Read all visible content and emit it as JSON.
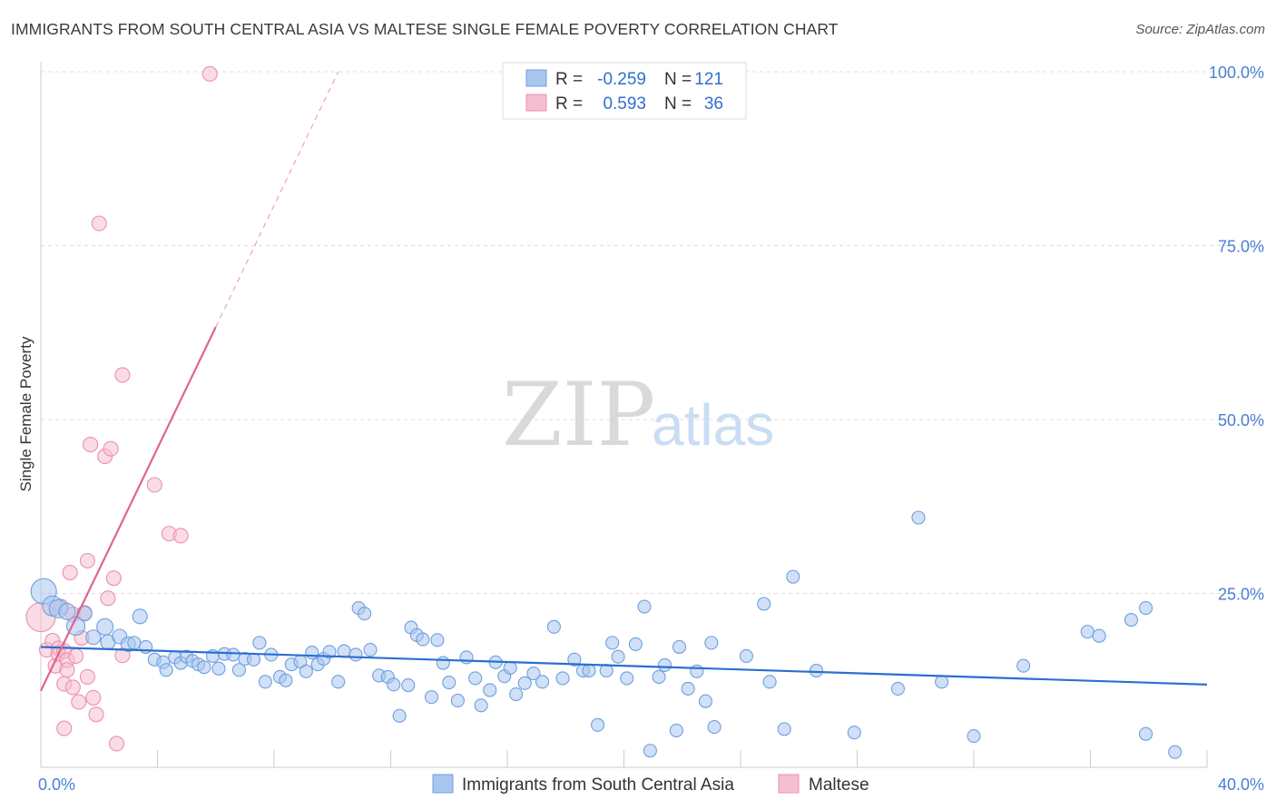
{
  "title": "IMMIGRANTS FROM SOUTH CENTRAL ASIA VS MALTESE SINGLE FEMALE POVERTY CORRELATION CHART",
  "source": "Source: ZipAtlas.com",
  "watermark": {
    "zip": "ZIP",
    "atlas": "atlas"
  },
  "colors": {
    "blue_fill": "#a9c6ef",
    "blue_stroke": "#6f9fe0",
    "blue_line": "#2b6fd0",
    "pink_fill": "#f6bfd0",
    "pink_stroke": "#ec8fae",
    "pink_line": "#e0648e",
    "tick_text": "#4a7fd4",
    "grid": "#dddddd"
  },
  "legend": {
    "r_label": "R =",
    "n_label": "N =",
    "rows": [
      {
        "series": "blue",
        "r": "-0.259",
        "n": "121"
      },
      {
        "series": "pink",
        "r": "0.593",
        "n": "36"
      }
    ]
  },
  "chart_data": {
    "type": "scatter",
    "title": "IMMIGRANTS FROM SOUTH CENTRAL ASIA VS MALTESE SINGLE FEMALE POVERTY CORRELATION CHART",
    "xlabel": "",
    "ylabel": "Single Female Poverty",
    "xlim": [
      0,
      40
    ],
    "ylim": [
      0,
      105
    ],
    "x_ticks": [
      "0.0%",
      "40.0%"
    ],
    "y_ticks": [
      {
        "value": 25,
        "label": "25.0%"
      },
      {
        "value": 50,
        "label": "50.0%"
      },
      {
        "value": 75,
        "label": "75.0%"
      },
      {
        "value": 100,
        "label": "100.0%"
      }
    ],
    "grid": true,
    "legend_position": "bottom",
    "series": [
      {
        "name": "Immigrants from South Central Asia",
        "color": "blue",
        "trend": {
          "x": [
            0,
            40
          ],
          "y": [
            17.3,
            11.9
          ]
        },
        "points": [
          [
            0.1,
            25.3,
            14
          ],
          [
            0.4,
            23.2,
            11
          ],
          [
            0.6,
            22.8,
            10
          ],
          [
            0.9,
            22.4,
            9
          ],
          [
            1.2,
            20.3,
            10
          ],
          [
            1.5,
            22.1,
            8
          ],
          [
            1.8,
            18.7,
            8
          ],
          [
            2.2,
            20.2,
            9
          ],
          [
            2.3,
            18.0,
            8
          ],
          [
            2.7,
            18.8,
            8
          ],
          [
            3.0,
            17.7,
            8
          ],
          [
            3.2,
            17.9,
            7
          ],
          [
            3.4,
            21.7,
            8
          ],
          [
            3.6,
            17.3,
            7
          ],
          [
            3.9,
            15.5,
            7
          ],
          [
            4.2,
            15.1,
            7
          ],
          [
            4.3,
            14.0,
            7
          ],
          [
            4.6,
            15.8,
            7
          ],
          [
            4.8,
            15.0,
            7
          ],
          [
            5.0,
            15.9,
            7
          ],
          [
            5.2,
            15.3,
            7
          ],
          [
            5.4,
            14.8,
            7
          ],
          [
            5.6,
            14.4,
            7
          ],
          [
            5.9,
            16.0,
            7
          ],
          [
            6.1,
            14.2,
            7
          ],
          [
            6.3,
            16.3,
            7
          ],
          [
            6.6,
            16.2,
            7
          ],
          [
            6.8,
            14.0,
            7
          ],
          [
            7.0,
            15.6,
            7
          ],
          [
            7.3,
            15.5,
            7
          ],
          [
            7.5,
            17.9,
            7
          ],
          [
            7.7,
            12.3,
            7
          ],
          [
            7.9,
            16.2,
            7
          ],
          [
            8.2,
            13.0,
            7
          ],
          [
            8.4,
            12.5,
            7
          ],
          [
            8.6,
            14.8,
            7
          ],
          [
            8.9,
            15.2,
            7
          ],
          [
            9.1,
            13.8,
            7
          ],
          [
            9.3,
            16.5,
            7
          ],
          [
            9.5,
            14.8,
            7
          ],
          [
            9.7,
            15.6,
            7
          ],
          [
            9.9,
            16.6,
            7
          ],
          [
            10.2,
            12.3,
            7
          ],
          [
            10.4,
            16.7,
            7
          ],
          [
            10.8,
            16.2,
            7
          ],
          [
            10.9,
            22.9,
            7
          ],
          [
            11.1,
            22.1,
            7
          ],
          [
            11.3,
            16.9,
            7
          ],
          [
            11.6,
            13.2,
            7
          ],
          [
            11.9,
            13.0,
            7
          ],
          [
            12.1,
            11.9,
            7
          ],
          [
            12.3,
            7.4,
            7
          ],
          [
            12.6,
            11.8,
            7
          ],
          [
            12.7,
            20.1,
            7
          ],
          [
            12.9,
            19.0,
            7
          ],
          [
            13.1,
            18.4,
            7
          ],
          [
            13.4,
            10.1,
            7
          ],
          [
            13.6,
            18.3,
            7
          ],
          [
            13.8,
            15.0,
            7
          ],
          [
            14.0,
            12.2,
            7
          ],
          [
            14.3,
            9.6,
            7
          ],
          [
            14.6,
            15.8,
            7
          ],
          [
            14.9,
            12.8,
            7
          ],
          [
            15.1,
            8.9,
            7
          ],
          [
            15.4,
            11.1,
            7
          ],
          [
            15.6,
            15.1,
            7
          ],
          [
            15.9,
            13.1,
            7
          ],
          [
            16.1,
            14.3,
            7
          ],
          [
            16.3,
            10.5,
            7
          ],
          [
            16.6,
            12.1,
            7
          ],
          [
            16.9,
            13.5,
            7
          ],
          [
            17.2,
            12.3,
            7
          ],
          [
            17.6,
            20.2,
            7
          ],
          [
            17.9,
            12.8,
            7
          ],
          [
            18.3,
            15.5,
            7
          ],
          [
            18.6,
            13.9,
            7
          ],
          [
            18.8,
            13.9,
            7
          ],
          [
            19.1,
            6.1,
            7
          ],
          [
            19.4,
            13.9,
            7
          ],
          [
            19.6,
            17.9,
            7
          ],
          [
            19.8,
            15.9,
            7
          ],
          [
            20.1,
            12.8,
            7
          ],
          [
            20.4,
            17.7,
            7
          ],
          [
            20.7,
            23.1,
            7
          ],
          [
            20.9,
            2.4,
            7
          ],
          [
            21.2,
            13.0,
            7
          ],
          [
            21.4,
            14.7,
            7
          ],
          [
            21.8,
            5.3,
            7
          ],
          [
            21.9,
            17.3,
            7
          ],
          [
            22.2,
            11.3,
            7
          ],
          [
            22.5,
            13.8,
            7
          ],
          [
            22.8,
            9.5,
            7
          ],
          [
            23.0,
            17.9,
            7
          ],
          [
            23.1,
            5.8,
            7
          ],
          [
            24.2,
            16.0,
            7
          ],
          [
            24.8,
            23.5,
            7
          ],
          [
            25.0,
            12.3,
            7
          ],
          [
            25.5,
            5.5,
            7
          ],
          [
            25.8,
            27.4,
            7
          ],
          [
            26.6,
            13.9,
            7
          ],
          [
            27.9,
            5.0,
            7
          ],
          [
            29.4,
            11.3,
            7
          ],
          [
            30.1,
            35.9,
            7
          ],
          [
            30.9,
            12.3,
            7
          ],
          [
            32.0,
            4.5,
            7
          ],
          [
            33.7,
            14.6,
            7
          ],
          [
            35.9,
            19.5,
            7
          ],
          [
            36.3,
            18.9,
            7
          ],
          [
            37.4,
            21.2,
            7
          ],
          [
            37.9,
            22.9,
            7
          ],
          [
            37.9,
            4.8,
            7
          ],
          [
            38.9,
            2.2,
            7
          ]
        ]
      },
      {
        "name": "Maltese",
        "color": "pink",
        "trend": {
          "x": [
            0,
            6.0
          ],
          "y": [
            11.0,
            63.3
          ]
        },
        "trend_dashed": {
          "x": [
            6.0,
            10.2
          ],
          "y": [
            63.3,
            100
          ]
        },
        "points": [
          [
            0.0,
            21.6,
            16
          ],
          [
            0.2,
            16.9,
            8
          ],
          [
            0.4,
            18.2,
            8
          ],
          [
            0.5,
            14.6,
            8
          ],
          [
            0.6,
            17.1,
            8
          ],
          [
            0.6,
            16.3,
            8
          ],
          [
            0.7,
            23.1,
            8
          ],
          [
            0.8,
            16.7,
            8
          ],
          [
            0.8,
            12.0,
            8
          ],
          [
            0.9,
            15.4,
            8
          ],
          [
            0.8,
            5.6,
            8
          ],
          [
            0.9,
            14.0,
            8
          ],
          [
            1.0,
            28.0,
            8
          ],
          [
            1.1,
            22.0,
            8
          ],
          [
            1.1,
            11.5,
            8
          ],
          [
            1.2,
            16.0,
            8
          ],
          [
            1.3,
            9.4,
            8
          ],
          [
            1.4,
            18.6,
            8
          ],
          [
            1.5,
            22.2,
            8
          ],
          [
            1.6,
            13.0,
            8
          ],
          [
            1.6,
            29.7,
            8
          ],
          [
            1.7,
            46.4,
            8
          ],
          [
            1.8,
            10.0,
            8
          ],
          [
            1.9,
            7.6,
            8
          ],
          [
            2.0,
            78.2,
            8
          ],
          [
            2.2,
            44.7,
            8
          ],
          [
            2.3,
            24.3,
            8
          ],
          [
            2.4,
            45.8,
            8
          ],
          [
            2.5,
            27.2,
            8
          ],
          [
            2.6,
            3.4,
            8
          ],
          [
            2.8,
            16.1,
            8
          ],
          [
            2.8,
            56.4,
            8
          ],
          [
            3.9,
            40.6,
            8
          ],
          [
            4.4,
            33.6,
            8
          ],
          [
            4.8,
            33.3,
            8
          ],
          [
            5.8,
            99.7,
            8
          ]
        ]
      }
    ]
  }
}
